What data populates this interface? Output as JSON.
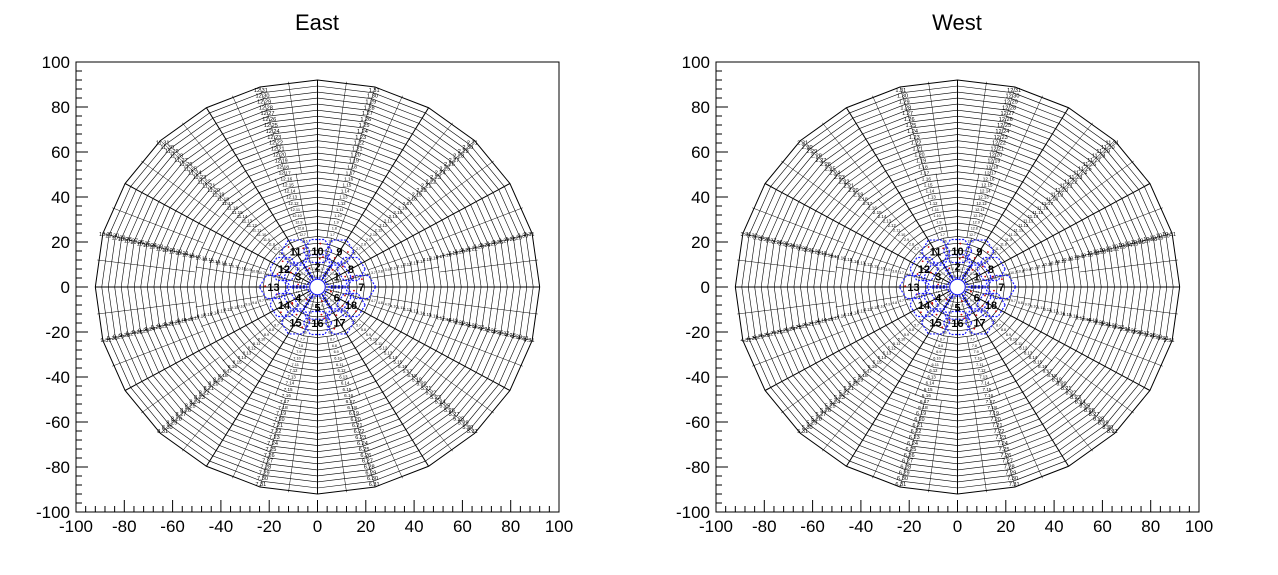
{
  "panels": [
    {
      "title": "East",
      "label_orientation": "east",
      "x_ticks": [
        "-100",
        "-80",
        "-60",
        "-40",
        "-20",
        "0",
        "20",
        "40",
        "60",
        "80",
        "100"
      ],
      "y_ticks": [
        "100",
        "80",
        "60",
        "40",
        "20",
        "0",
        "-20",
        "-40",
        "-60",
        "-80",
        "-100"
      ],
      "hex_labels": [
        "1",
        "2",
        "3",
        "4",
        "5",
        "6",
        "7",
        "8",
        "9",
        "10",
        "11",
        "12",
        "13",
        "14",
        "15",
        "16",
        "17",
        "18"
      ]
    },
    {
      "title": "West",
      "label_orientation": "west",
      "x_ticks": [
        "-100",
        "-80",
        "-60",
        "-40",
        "-20",
        "0",
        "20",
        "40",
        "60",
        "80",
        "100"
      ],
      "y_ticks": [
        "100",
        "80",
        "60",
        "40",
        "20",
        "0",
        "-20",
        "-40",
        "-60",
        "-80",
        "-100"
      ],
      "hex_labels": [
        "1",
        "2",
        "3",
        "4",
        "5",
        "6",
        "7",
        "8",
        "9",
        "10",
        "11",
        "12",
        "13",
        "14",
        "15",
        "16",
        "17",
        "18"
      ]
    }
  ],
  "grid": {
    "sectors": 12,
    "rings": [
      1,
      2,
      3,
      4,
      5,
      6,
      7,
      8,
      9,
      10,
      11,
      12,
      13,
      14,
      15,
      16,
      17,
      18,
      19,
      20,
      21,
      22,
      23,
      24,
      25,
      26,
      27,
      28,
      29,
      30,
      31
    ],
    "label_format": "sector.ring"
  },
  "colors": {
    "grid_line": "#000000",
    "hex_outline": "#1a1aff",
    "marker": "#cc0000",
    "axis": "#000000"
  }
}
